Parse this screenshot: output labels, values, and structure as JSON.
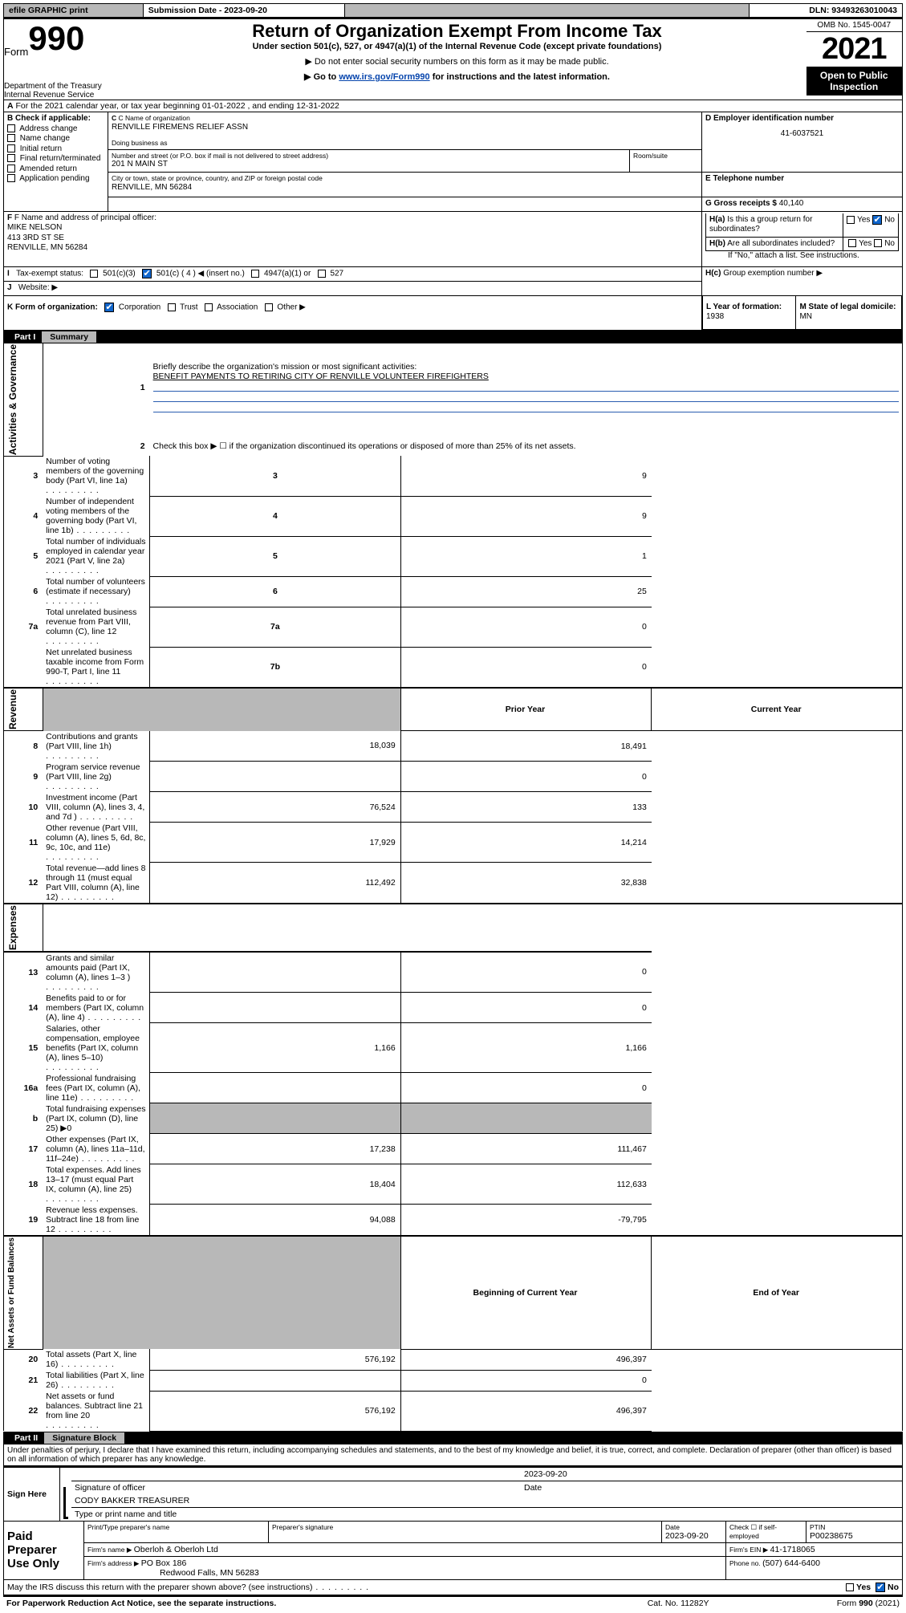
{
  "topbar": {
    "efile": "efile GRAPHIC print",
    "sub_label": "Submission Date - 2023-09-20",
    "dln": "DLN: 93493263010043"
  },
  "header": {
    "form_word": "Form",
    "form_num": "990",
    "dept": "Department of the Treasury\nInternal Revenue Service",
    "title": "Return of Organization Exempt From Income Tax",
    "sub": "Under section 501(c), 527, or 4947(a)(1) of the Internal Revenue Code (except private foundations)",
    "note1": "▶ Do not enter social security numbers on this form as it may be made public.",
    "note2_pre": "▶ Go to ",
    "note2_link": "www.irs.gov/Form990",
    "note2_post": " for instructions and the latest information.",
    "omb": "OMB No. 1545-0047",
    "year": "2021",
    "open": "Open to Public Inspection"
  },
  "A": {
    "line": "For the 2021 calendar year, or tax year beginning 01-01-2022   , and ending 12-31-2022",
    "B_label": "B Check if applicable:",
    "B_opts": [
      "Address change",
      "Name change",
      "Initial return",
      "Final return/terminated",
      "Amended return",
      "Application pending"
    ],
    "C_label": "C Name of organization",
    "C_name": "RENVILLE FIREMENS RELIEF ASSN",
    "dba_label": "Doing business as",
    "addr_label": "Number and street (or P.O. box if mail is not delivered to street address)",
    "room_label": "Room/suite",
    "addr": "201 N MAIN ST",
    "city_label": "City or town, state or province, country, and ZIP or foreign postal code",
    "city": "RENVILLE, MN  56284",
    "D_label": "D Employer identification number",
    "D_val": "41-6037521",
    "E_label": "E Telephone number",
    "G_label": "G Gross receipts $ ",
    "G_val": "40,140",
    "F_label": "F  Name and address of principal officer:",
    "F_name": "MIKE NELSON",
    "F_addr1": "413 3RD ST SE",
    "F_addr2": "RENVILLE, MN  56284",
    "Ha": "Is this a group return for subordinates?",
    "Hb": "Are all subordinates included?",
    "H_ifno": "If \"No,\" attach a list. See instructions.",
    "Hc": "Group exemption number ▶",
    "I_label": "Tax-exempt status:",
    "I_opts": [
      "501(c)(3)",
      "501(c) ( 4 ) ◀ (insert no.)",
      "4947(a)(1) or",
      "527"
    ],
    "J_label": "Website: ▶",
    "K_label": "K Form of organization:",
    "K_opts": [
      "Corporation",
      "Trust",
      "Association",
      "Other ▶"
    ],
    "L_label": "L Year of formation: ",
    "L_val": "1938",
    "M_label": "M State of legal domicile: ",
    "M_val": "MN",
    "Yes": "Yes",
    "No": "No"
  },
  "part1": {
    "label": "Part I",
    "title": "Summary",
    "l1": "Briefly describe the organization's mission or most significant activities:",
    "l1_text": "BENEFIT PAYMENTS TO RETIRING CITY OF RENVILLE VOLUNTEER FIREFIGHTERS",
    "l2": "Check this box ▶ ☐  if the organization discontinued its operations or disposed of more than 25% of its net assets.",
    "rows_gov": [
      {
        "n": "3",
        "t": "Number of voting members of the governing body (Part VI, line 1a)",
        "box": "3",
        "v": "9"
      },
      {
        "n": "4",
        "t": "Number of independent voting members of the governing body (Part VI, line 1b)",
        "box": "4",
        "v": "9"
      },
      {
        "n": "5",
        "t": "Total number of individuals employed in calendar year 2021 (Part V, line 2a)",
        "box": "5",
        "v": "1"
      },
      {
        "n": "6",
        "t": "Total number of volunteers (estimate if necessary)",
        "box": "6",
        "v": "25"
      },
      {
        "n": "7a",
        "t": "Total unrelated business revenue from Part VIII, column (C), line 12",
        "box": "7a",
        "v": "0"
      },
      {
        "n": "",
        "t": "Net unrelated business taxable income from Form 990-T, Part I, line 11",
        "box": "7b",
        "v": "0"
      }
    ],
    "prior": "Prior Year",
    "current": "Current Year",
    "rows_rev": [
      {
        "n": "8",
        "t": "Contributions and grants (Part VIII, line 1h)",
        "p": "18,039",
        "c": "18,491"
      },
      {
        "n": "9",
        "t": "Program service revenue (Part VIII, line 2g)",
        "p": "",
        "c": "0"
      },
      {
        "n": "10",
        "t": "Investment income (Part VIII, column (A), lines 3, 4, and 7d )",
        "p": "76,524",
        "c": "133"
      },
      {
        "n": "11",
        "t": "Other revenue (Part VIII, column (A), lines 5, 6d, 8c, 9c, 10c, and 11e)",
        "p": "17,929",
        "c": "14,214"
      },
      {
        "n": "12",
        "t": "Total revenue—add lines 8 through 11 (must equal Part VIII, column (A), line 12)",
        "p": "112,492",
        "c": "32,838"
      }
    ],
    "rows_exp": [
      {
        "n": "13",
        "t": "Grants and similar amounts paid (Part IX, column (A), lines 1–3 )",
        "p": "",
        "c": "0"
      },
      {
        "n": "14",
        "t": "Benefits paid to or for members (Part IX, column (A), line 4)",
        "p": "",
        "c": "0"
      },
      {
        "n": "15",
        "t": "Salaries, other compensation, employee benefits (Part IX, column (A), lines 5–10)",
        "p": "1,166",
        "c": "1,166"
      },
      {
        "n": "16a",
        "t": "Professional fundraising fees (Part IX, column (A), line 11e)",
        "p": "",
        "c": "0"
      },
      {
        "n": "b",
        "t": "Total fundraising expenses (Part IX, column (D), line 25) ▶0",
        "grey": true
      },
      {
        "n": "17",
        "t": "Other expenses (Part IX, column (A), lines 11a–11d, 11f–24e)",
        "p": "17,238",
        "c": "111,467"
      },
      {
        "n": "18",
        "t": "Total expenses. Add lines 13–17 (must equal Part IX, column (A), line 25)",
        "p": "18,404",
        "c": "112,633"
      },
      {
        "n": "19",
        "t": "Revenue less expenses. Subtract line 18 from line 12",
        "p": "94,088",
        "c": "-79,795"
      }
    ],
    "begin": "Beginning of Current Year",
    "end": "End of Year",
    "rows_net": [
      {
        "n": "20",
        "t": "Total assets (Part X, line 16)",
        "p": "576,192",
        "c": "496,397"
      },
      {
        "n": "21",
        "t": "Total liabilities (Part X, line 26)",
        "p": "",
        "c": "0"
      },
      {
        "n": "22",
        "t": "Net assets or fund balances. Subtract line 21 from line 20",
        "p": "576,192",
        "c": "496,397"
      }
    ],
    "side_gov": "Activities & Governance",
    "side_rev": "Revenue",
    "side_exp": "Expenses",
    "side_net": "Net Assets or Fund Balances"
  },
  "part2": {
    "label": "Part II",
    "title": "Signature Block",
    "decl": "Under penalties of perjury, I declare that I have examined this return, including accompanying schedules and statements, and to the best of my knowledge and belief, it is true, correct, and complete. Declaration of preparer (other than officer) is based on all information of which preparer has any knowledge.",
    "sign_here": "Sign Here",
    "sig_officer": "Signature of officer",
    "sig_date": "Date",
    "sig_date_val": "2023-09-20",
    "officer_name": "CODY BAKKER  TREASURER",
    "type_name": "Type or print name and title",
    "paid": "Paid Preparer Use Only",
    "pp_name_lbl": "Print/Type preparer's name",
    "pp_sig_lbl": "Preparer's signature",
    "pp_date_lbl": "Date",
    "pp_date": "2023-09-20",
    "pp_check": "Check ☐ if self-employed",
    "ptin_lbl": "PTIN",
    "ptin": "P00238675",
    "firm_name_lbl": "Firm's name    ▶ ",
    "firm_name": "Oberloh & Oberloh Ltd",
    "firm_ein_lbl": "Firm's EIN ▶ ",
    "firm_ein": "41-1718065",
    "firm_addr_lbl": "Firm's address ▶ ",
    "firm_addr1": "PO Box 186",
    "firm_addr2": "Redwood Falls, MN  56283",
    "phone_lbl": "Phone no. ",
    "phone": "(507) 644-6400",
    "discuss": "May the IRS discuss this return with the preparer shown above? (see instructions)"
  },
  "footer": {
    "pra": "For Paperwork Reduction Act Notice, see the separate instructions.",
    "cat": "Cat. No. 11282Y",
    "form": "Form 990 (2021)"
  }
}
